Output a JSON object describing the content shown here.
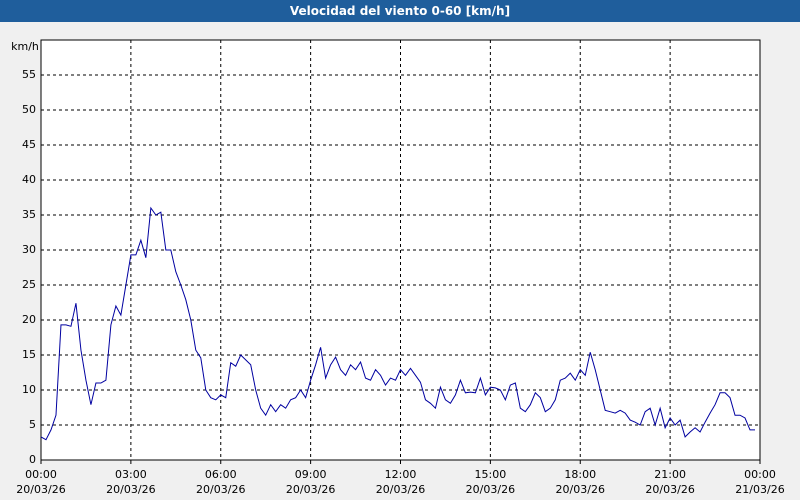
{
  "chart_data": {
    "type": "line",
    "title": "Velocidad del viento 0-60 [km/h]",
    "y_label": "km/h",
    "xlim": [
      0,
      1440
    ],
    "ylim": [
      0,
      60
    ],
    "grid": true,
    "color": "#0000a0",
    "yticks": [
      0,
      5,
      10,
      15,
      20,
      25,
      30,
      35,
      40,
      45,
      50,
      55
    ],
    "xticks": [
      {
        "value": 0,
        "label": "00:00"
      },
      {
        "value": 180,
        "label": "03:00"
      },
      {
        "value": 360,
        "label": "06:00"
      },
      {
        "value": 540,
        "label": "09:00"
      },
      {
        "value": 720,
        "label": "12:00"
      },
      {
        "value": 900,
        "label": "15:00"
      },
      {
        "value": 1080,
        "label": "18:00"
      },
      {
        "value": 1260,
        "label": "21:00"
      },
      {
        "value": 1440,
        "label": "00:00"
      }
    ],
    "xtick_dates": [
      "20/03/26",
      "20/03/26",
      "20/03/26",
      "20/03/26",
      "20/03/26",
      "20/03/26",
      "20/03/26",
      "20/03/26",
      "21/03/26"
    ],
    "x": [
      0,
      10,
      20,
      30,
      40,
      50,
      60,
      70,
      80,
      90,
      100,
      110,
      120,
      130,
      140,
      150,
      160,
      170,
      180,
      190,
      200,
      210,
      220,
      230,
      240,
      250,
      260,
      270,
      280,
      290,
      300,
      310,
      320,
      330,
      340,
      350,
      360,
      370,
      380,
      390,
      400,
      410,
      420,
      430,
      440,
      450,
      460,
      470,
      480,
      490,
      500,
      510,
      520,
      530,
      540,
      550,
      560,
      570,
      580,
      590,
      600,
      610,
      620,
      630,
      640,
      650,
      660,
      670,
      680,
      690,
      700,
      710,
      720,
      730,
      740,
      750,
      760,
      770,
      780,
      790,
      800,
      810,
      820,
      830,
      840,
      850,
      860,
      870,
      880,
      890,
      900,
      910,
      920,
      930,
      940,
      950,
      960,
      970,
      980,
      990,
      1000,
      1010,
      1020,
      1030,
      1040,
      1050,
      1060,
      1070,
      1080,
      1090,
      1100,
      1110,
      1120,
      1130,
      1140,
      1150,
      1160,
      1170,
      1180,
      1190,
      1200,
      1210,
      1220,
      1230,
      1240,
      1250,
      1260,
      1270,
      1280,
      1290,
      1300,
      1310,
      1320,
      1330,
      1340,
      1350,
      1360,
      1370,
      1380,
      1390,
      1400,
      1410,
      1420,
      1430
    ],
    "values": [
      3.3,
      2.9,
      4.3,
      6.4,
      19.3,
      19.3,
      19.1,
      22.4,
      15.7,
      11.4,
      7.9,
      11,
      11,
      11.4,
      19.3,
      22,
      20.7,
      25,
      29.3,
      29.3,
      31.4,
      28.9,
      36,
      35,
      35.4,
      30,
      30,
      26.9,
      25,
      22.9,
      20,
      15.7,
      14.6,
      10,
      8.9,
      8.6,
      9.3,
      8.9,
      13.9,
      13.4,
      15,
      14.3,
      13.6,
      10,
      7.4,
      6.4,
      7.9,
      6.9,
      7.9,
      7.4,
      8.6,
      8.9,
      10,
      8.9,
      11.4,
      13.6,
      16.1,
      11.7,
      13.6,
      14.7,
      12.9,
      12.1,
      13.6,
      12.9,
      14,
      11.7,
      11.4,
      12.9,
      12.1,
      10.7,
      11.7,
      11.4,
      12.9,
      12.1,
      13.1,
      12.1,
      11.1,
      8.6,
      8.1,
      7.4,
      10.4,
      8.6,
      8.1,
      9.3,
      11.4,
      9.6,
      9.7,
      9.6,
      11.7,
      9.3,
      10.4,
      10.3,
      10,
      8.6,
      10.7,
      11,
      7.4,
      6.9,
      7.9,
      9.6,
      8.9,
      6.9,
      7.4,
      8.6,
      11.4,
      11.7,
      12.4,
      11.4,
      12.9,
      12.1,
      15.4,
      12.9,
      10,
      7.1,
      6.9,
      6.7,
      7.1,
      6.7,
      5.7,
      5.4,
      5,
      6.9,
      7.4,
      5,
      7.4,
      4.6,
      6,
      5,
      5.7,
      3.3,
      4,
      4.6,
      4,
      5.4,
      6.7,
      7.9,
      9.6,
      9.6,
      8.9,
      6.4,
      6.4,
      6,
      4.3,
      4.3
    ]
  }
}
